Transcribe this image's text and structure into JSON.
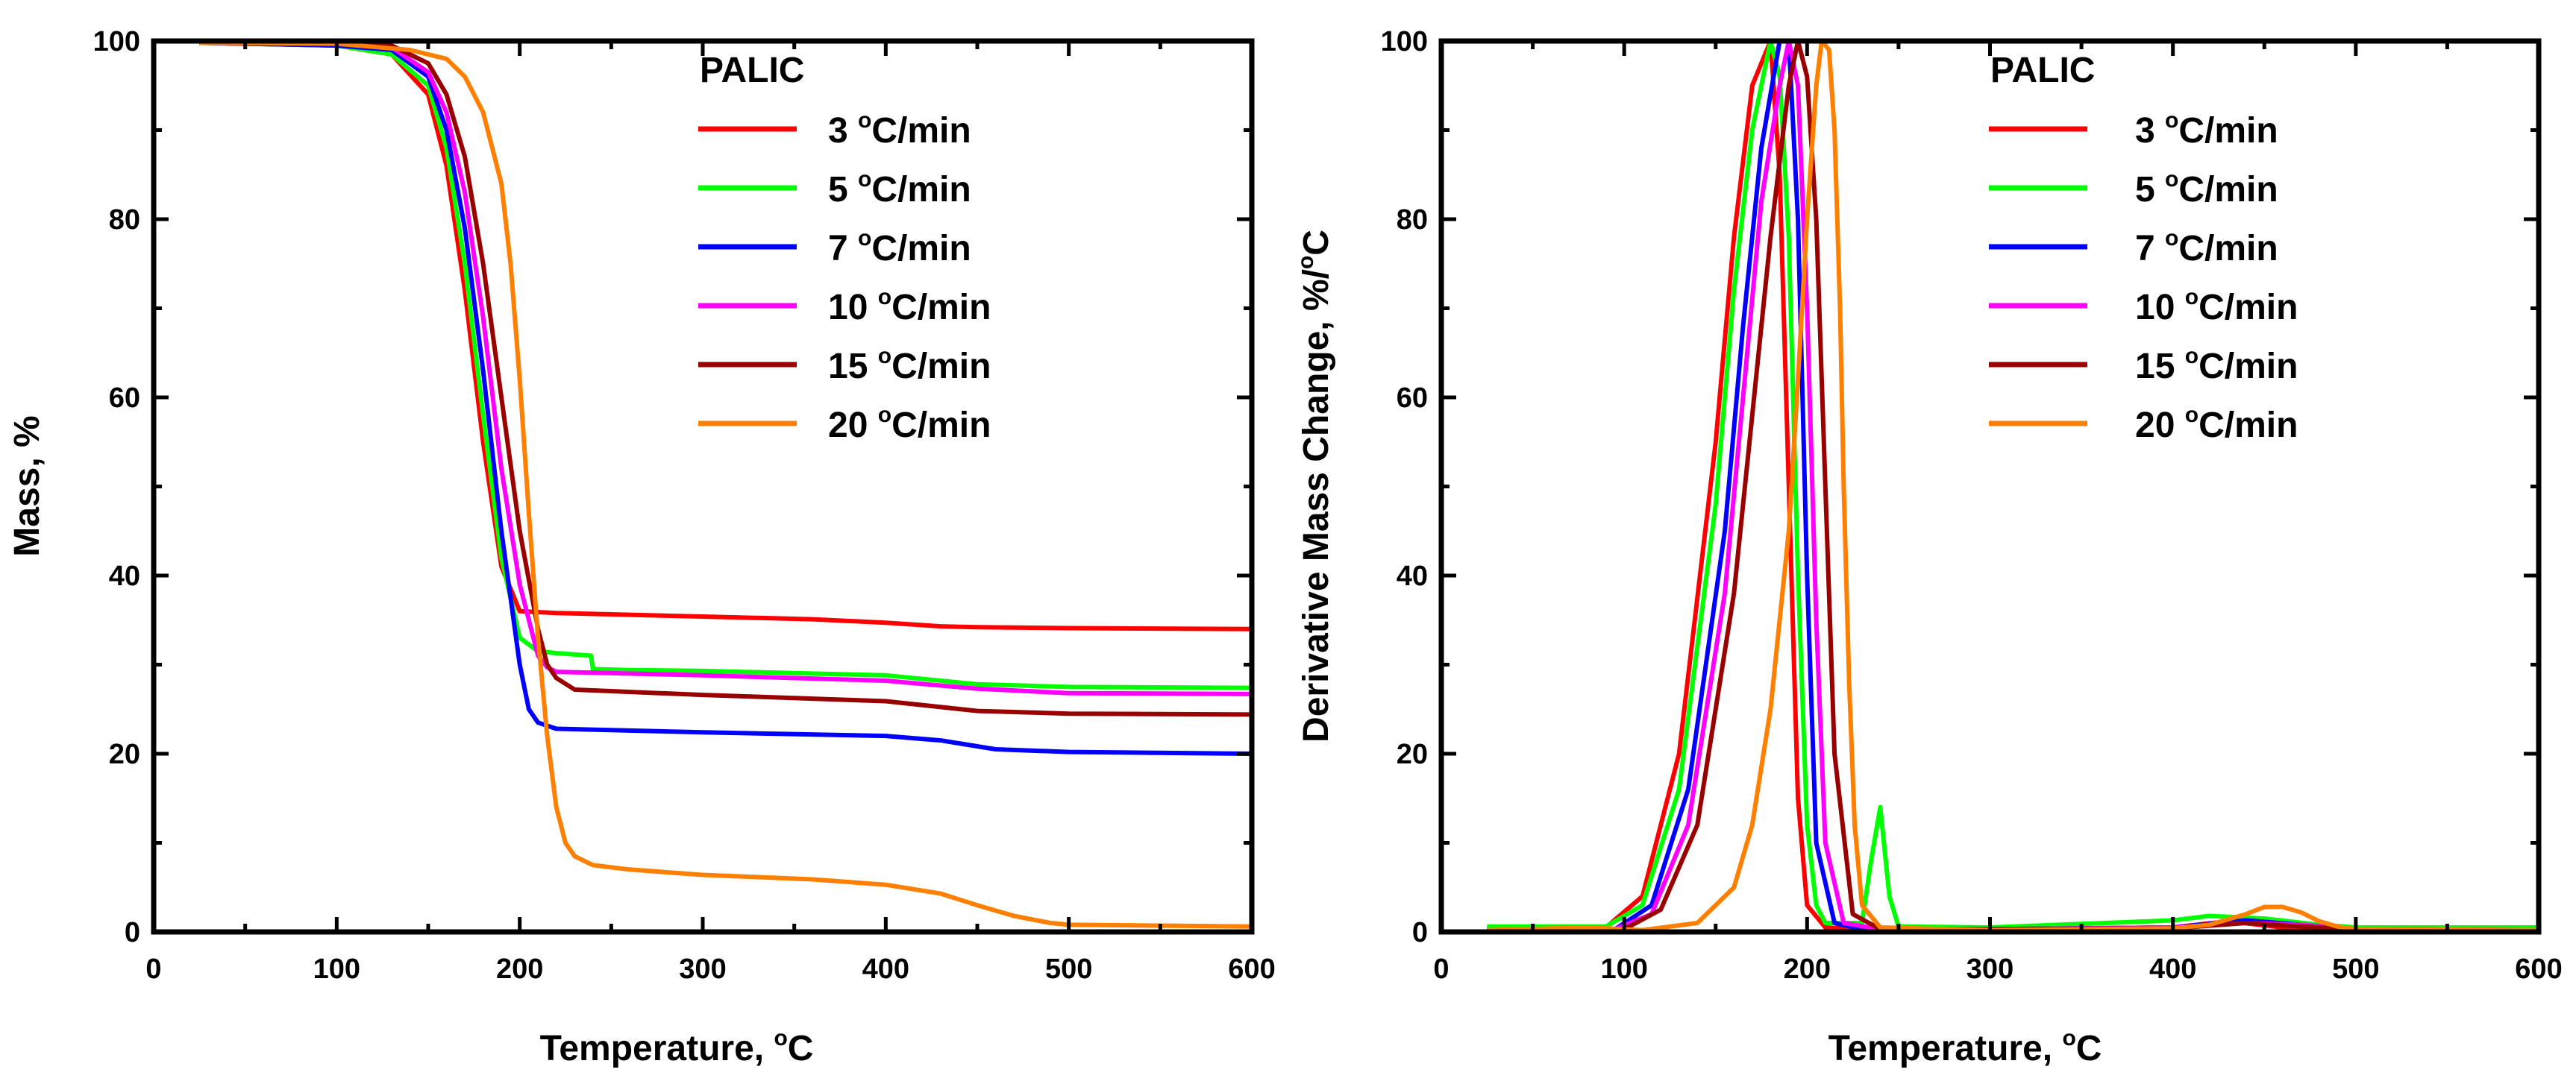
{
  "chart_data": [
    {
      "type": "line",
      "title": "",
      "xlabel": "Temperature, ",
      "xlabel_sup": "o",
      "xlabel_unit": "C",
      "ylabel": "Mass, %",
      "xlim": [
        0,
        600
      ],
      "ylim": [
        0,
        100
      ],
      "xticks": [
        "0",
        "100",
        "200",
        "300",
        "400",
        "500",
        "600"
      ],
      "yticks": [
        "0",
        "20",
        "40",
        "60",
        "80",
        "100"
      ],
      "legend_title": "PALIC",
      "legend_position": "top-right",
      "series": [
        {
          "name_num": "3",
          "name_unit": "C/min",
          "color": "#ff0000",
          "x": [
            25,
            100,
            130,
            150,
            160,
            170,
            180,
            190,
            200,
            220,
            300,
            360,
            400,
            430,
            450,
            500,
            600
          ],
          "y": [
            99.8,
            99.5,
            98.5,
            94,
            86,
            72,
            55,
            41,
            36,
            35.8,
            35.4,
            35.1,
            34.7,
            34.3,
            34.2,
            34.1,
            34.0
          ]
        },
        {
          "name_num": "5",
          "name_unit": "C/min",
          "color": "#00ff00",
          "x": [
            25,
            100,
            130,
            150,
            160,
            170,
            180,
            190,
            200,
            210,
            220,
            239,
            240,
            260,
            300,
            400,
            450,
            500,
            600
          ],
          "y": [
            99.8,
            99.5,
            98.5,
            95,
            88,
            75,
            58,
            42,
            33,
            31.5,
            31.3,
            31.0,
            29.5,
            29.4,
            29.3,
            28.8,
            27.8,
            27.5,
            27.4
          ]
        },
        {
          "name_num": "7",
          "name_unit": "C/min",
          "color": "#0000ff",
          "x": [
            25,
            100,
            130,
            150,
            160,
            170,
            180,
            190,
            200,
            205,
            210,
            220,
            300,
            400,
            430,
            460,
            500,
            600
          ],
          "y": [
            99.8,
            99.5,
            99,
            96,
            90,
            79,
            63,
            45,
            30,
            25,
            23.5,
            22.8,
            22.4,
            22.0,
            21.5,
            20.5,
            20.2,
            20.0
          ]
        },
        {
          "name_num": "10",
          "name_unit": "C/min",
          "color": "#ff00ff",
          "x": [
            25,
            100,
            130,
            150,
            160,
            170,
            180,
            190,
            200,
            210,
            215,
            220,
            300,
            400,
            450,
            500,
            600
          ],
          "y": [
            99.8,
            99.7,
            99.3,
            96.5,
            92,
            83,
            69,
            52,
            39,
            31,
            29.7,
            29.2,
            28.8,
            28.2,
            27.3,
            26.8,
            26.7
          ]
        },
        {
          "name_num": "15",
          "name_unit": "C/min",
          "color": "#990000",
          "x": [
            25,
            100,
            130,
            150,
            160,
            170,
            180,
            190,
            200,
            210,
            215,
            220,
            230,
            300,
            400,
            450,
            500,
            600
          ],
          "y": [
            99.8,
            99.7,
            99.5,
            97.5,
            94,
            87,
            75,
            60,
            45,
            34,
            30,
            28.5,
            27.2,
            26.6,
            25.9,
            24.8,
            24.5,
            24.4
          ]
        },
        {
          "name_num": "20",
          "name_unit": "C/min",
          "color": "#ff8000",
          "x": [
            25,
            100,
            140,
            160,
            170,
            180,
            190,
            195,
            200,
            205,
            210,
            215,
            220,
            225,
            230,
            240,
            260,
            300,
            360,
            400,
            430,
            450,
            470,
            490,
            500,
            600
          ],
          "y": [
            99.8,
            99.7,
            99,
            98,
            96,
            92,
            84,
            75,
            62,
            47,
            33,
            22,
            14,
            10,
            8.5,
            7.5,
            7,
            6.4,
            5.9,
            5.3,
            4.3,
            3.0,
            1.8,
            1.0,
            0.8,
            0.6
          ]
        }
      ]
    },
    {
      "type": "line",
      "title": "",
      "xlabel": "Temperature, ",
      "xlabel_sup": "o",
      "xlabel_unit": "C",
      "ylabel": "Derivative Mass Change, %/",
      "ylabel_sup": "o",
      "ylabel_unit": "C",
      "xlim": [
        0,
        600
      ],
      "ylim": [
        0,
        100
      ],
      "xticks": [
        "0",
        "100",
        "200",
        "300",
        "400",
        "500",
        "600"
      ],
      "yticks": [
        "0",
        "20",
        "40",
        "60",
        "80",
        "100"
      ],
      "legend_title": "PALIC",
      "legend_position": "top-right",
      "series": [
        {
          "name_num": "3",
          "name_unit": "C/min",
          "color": "#ff0000",
          "x": [
            25,
            90,
            110,
            130,
            150,
            160,
            170,
            180,
            185,
            190,
            195,
            200,
            210,
            230,
            300,
            400,
            430,
            460,
            500,
            600
          ],
          "y": [
            0.3,
            0.5,
            4,
            20,
            55,
            78,
            95,
            100,
            85,
            50,
            15,
            3,
            0.5,
            0.3,
            0.3,
            0.5,
            1.2,
            0.5,
            0.3,
            0.2
          ]
        },
        {
          "name_num": "5",
          "name_unit": "C/min",
          "color": "#00ff00",
          "x": [
            25,
            90,
            110,
            130,
            150,
            160,
            170,
            180,
            185,
            190,
            195,
            200,
            205,
            210,
            230,
            235,
            240,
            245,
            250,
            300,
            400,
            420,
            450,
            480,
            500,
            600
          ],
          "y": [
            0.6,
            0.6,
            3,
            16,
            48,
            72,
            90,
            100,
            96,
            78,
            40,
            12,
            3,
            1,
            1,
            8,
            14,
            4,
            0.6,
            0.5,
            1.3,
            1.8,
            1.5,
            0.8,
            0.5,
            0.5
          ]
        },
        {
          "name_num": "7",
          "name_unit": "C/min",
          "color": "#0000ff",
          "x": [
            25,
            95,
            115,
            135,
            155,
            165,
            175,
            185,
            190,
            195,
            200,
            205,
            215,
            230,
            300,
            400,
            440,
            470,
            500,
            600
          ],
          "y": [
            0.2,
            0.3,
            3,
            16,
            45,
            68,
            88,
            100,
            100,
            80,
            40,
            10,
            1,
            0.3,
            0.3,
            0.5,
            1.3,
            0.8,
            0.3,
            0.2
          ]
        },
        {
          "name_num": "10",
          "name_unit": "C/min",
          "color": "#ff00ff",
          "x": [
            25,
            95,
            115,
            135,
            155,
            165,
            175,
            185,
            190,
            195,
            200,
            205,
            210,
            220,
            240,
            300,
            400,
            440,
            470,
            500,
            600
          ],
          "y": [
            0.2,
            0.3,
            2,
            12,
            38,
            60,
            82,
            95,
            100,
            95,
            70,
            35,
            10,
            1,
            0.3,
            0.3,
            0.5,
            1.0,
            0.8,
            0.3,
            0.2
          ]
        },
        {
          "name_num": "15",
          "name_unit": "C/min",
          "color": "#990000",
          "x": [
            25,
            100,
            120,
            140,
            160,
            170,
            180,
            190,
            195,
            200,
            205,
            210,
            215,
            225,
            240,
            300,
            400,
            440,
            470,
            500,
            600
          ],
          "y": [
            0.2,
            0.3,
            2.5,
            12,
            38,
            58,
            78,
            95,
            100,
            96,
            80,
            50,
            20,
            2,
            0.3,
            0.3,
            0.4,
            1.0,
            0.6,
            0.3,
            0.2
          ]
        },
        {
          "name_num": "20",
          "name_unit": "C/min",
          "color": "#ff8000",
          "x": [
            25,
            80,
            110,
            140,
            160,
            170,
            180,
            190,
            195,
            200,
            205,
            208,
            212,
            215,
            218,
            220,
            223,
            226,
            230,
            240,
            300,
            400,
            420,
            440,
            450,
            460,
            470,
            480,
            490,
            500,
            600
          ],
          "y": [
            0.2,
            0.5,
            0.2,
            1,
            5,
            12,
            25,
            45,
            62,
            80,
            95,
            100,
            99,
            90,
            70,
            50,
            28,
            12,
            3,
            0.5,
            0.2,
            0.4,
            0.8,
            2,
            2.8,
            2.8,
            2.2,
            1.2,
            0.6,
            0.3,
            0.2
          ]
        }
      ]
    }
  ]
}
